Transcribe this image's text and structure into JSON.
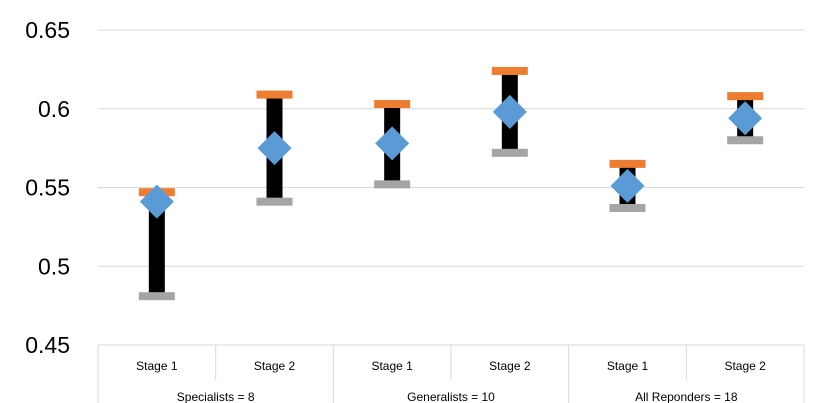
{
  "chart_data": {
    "type": "stock-hi-lo",
    "title": "",
    "xlabel": "",
    "ylabel": "",
    "ylim": [
      0.45,
      0.65
    ],
    "yticks": [
      0.45,
      0.5,
      0.55,
      0.6,
      0.65
    ],
    "ytick_labels": [
      "0.45",
      "0.5",
      "0.55",
      "0.6",
      "0.65"
    ],
    "grid": true,
    "legend": "none",
    "categories": [
      "Stage 1",
      "Stage 2",
      "Stage 1",
      "Stage 2",
      "Stage 1",
      "Stage 2"
    ],
    "groups": [
      {
        "label": "Specialists = 8",
        "span": 2
      },
      {
        "label": "Generalists = 10",
        "span": 2
      },
      {
        "label": "All Reponders = 18",
        "span": 2
      }
    ],
    "series": [
      {
        "role": "high",
        "color": "#ED7D31",
        "values": [
          0.547,
          0.609,
          0.603,
          0.624,
          0.565,
          0.608
        ]
      },
      {
        "role": "low",
        "color": "#A5A5A5",
        "values": [
          0.481,
          0.541,
          0.552,
          0.572,
          0.537,
          0.58
        ]
      },
      {
        "role": "mean",
        "color": "#5B9BD5",
        "values": [
          0.541,
          0.575,
          0.578,
          0.598,
          0.551,
          0.594
        ]
      }
    ],
    "range_bar_color": "#000000"
  }
}
